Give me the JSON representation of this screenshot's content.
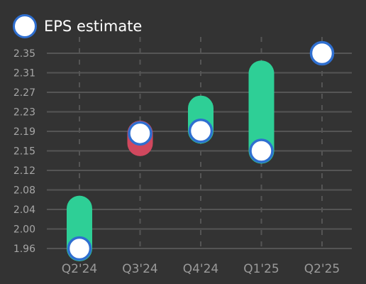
{
  "legend": {
    "label": "EPS estimate"
  },
  "colors": {
    "background": "#333333",
    "grid": "#555555",
    "beat_bar": "#2ecf96",
    "miss_bar": "#d0485e",
    "marker_fill": "#ffffff",
    "marker_stroke": "#2f6fd0",
    "tick_text": "#a6a6a6"
  },
  "chart_data": {
    "type": "range-bar with estimate markers",
    "categories": [
      "Q2'24",
      "Q3'24",
      "Q4'24",
      "Q1'25",
      "Q2'25"
    ],
    "y_ticks": [
      "1.96",
      "2.00",
      "2.04",
      "2.08",
      "2.12",
      "2.15",
      "2.19",
      "2.23",
      "2.27",
      "2.31",
      "2.35"
    ],
    "ylim": [
      1.96,
      2.35
    ],
    "series": [
      {
        "name": "EPS estimate",
        "values": [
          1.96,
          2.19,
          2.195,
          2.155,
          2.35
        ]
      }
    ],
    "actual": [
      2.04,
      2.17,
      2.24,
      2.31,
      null
    ],
    "grid": true,
    "legend_position": "top-left"
  }
}
